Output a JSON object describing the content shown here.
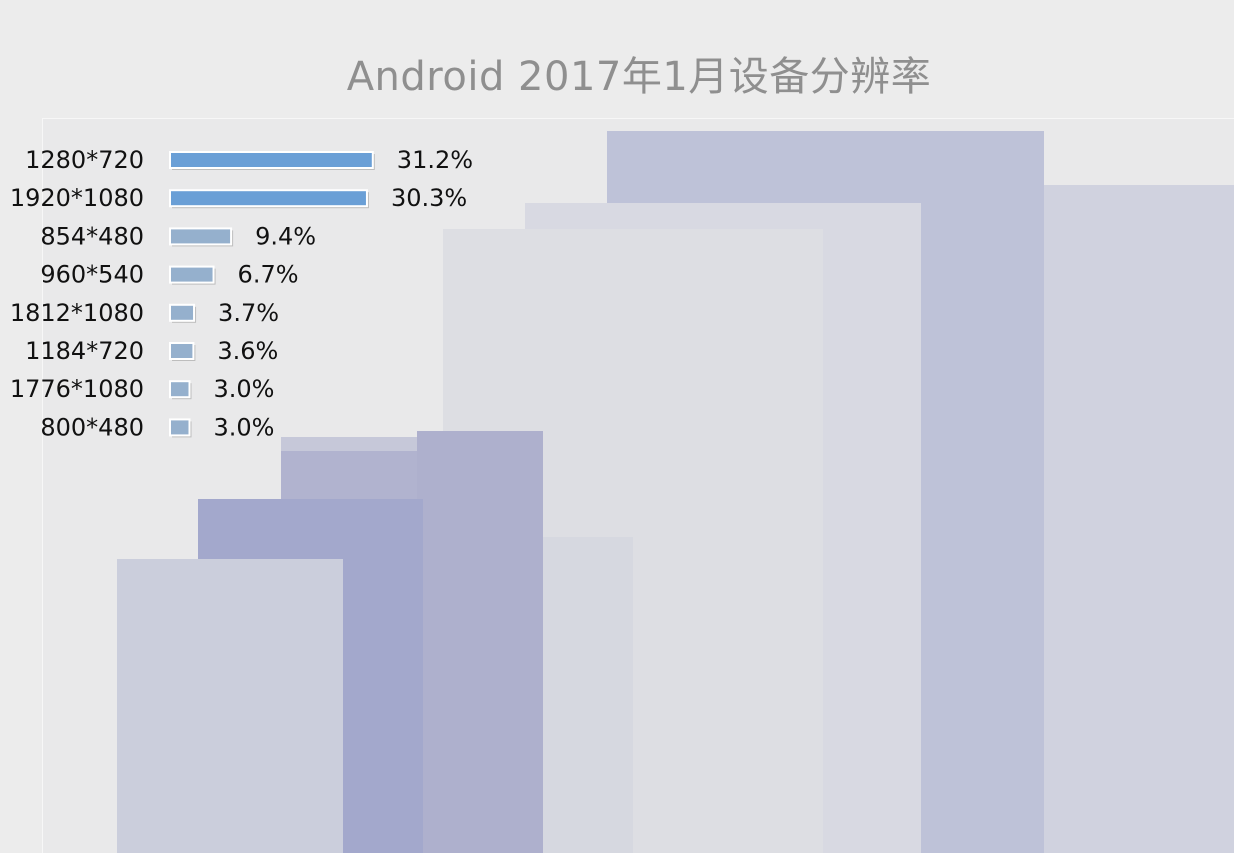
{
  "chart_data": {
    "type": "bar",
    "orientation": "horizontal",
    "title": "Android 2017年1月设备分辨率",
    "xlabel": "",
    "ylabel": "",
    "categories": [
      "1280*720",
      "1920*1080",
      "854*480",
      "960*540",
      "1812*1080",
      "1184*720",
      "1776*1080",
      "800*480"
    ],
    "values": [
      31.2,
      30.3,
      9.4,
      6.7,
      3.7,
      3.6,
      3.0,
      3.0
    ],
    "value_labels": [
      "31.2%",
      "30.3%",
      "9.4%",
      "6.7%",
      "3.7%",
      "3.6%",
      "3.0%",
      "3.0%"
    ],
    "unit": "%",
    "grid": false,
    "legend": "none",
    "colors": {
      "top_bars": "#6a9fd6",
      "other_bars": "#95b0cd",
      "title": "#8f8f8f"
    }
  }
}
